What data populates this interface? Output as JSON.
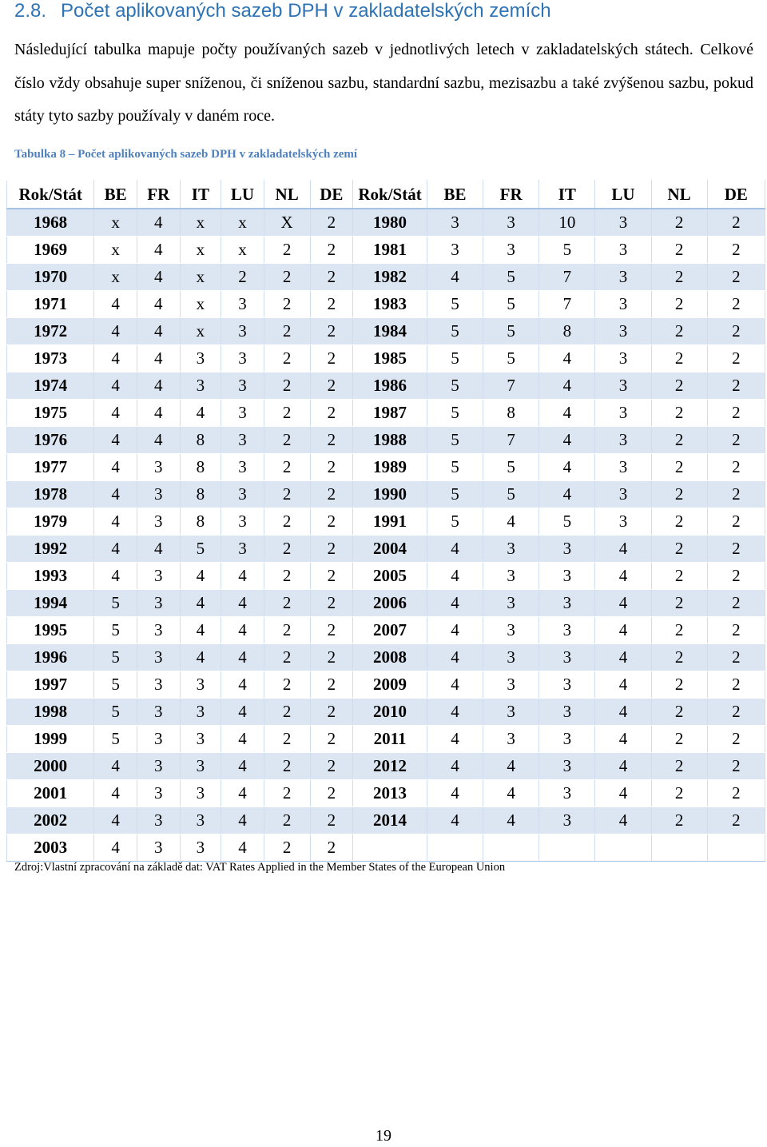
{
  "heading": {
    "number": "2.8.",
    "title": "Počet aplikovaných sazeb DPH v zakladatelských zemích"
  },
  "paragraph": "Následující tabulka mapuje počty používaných sazeb v jednotlivých letech v zakladatelských státech. Celkové číslo vždy obsahuje super sníženou, či sníženou sazbu, standardní sazbu, mezisazbu a také zvýšenou sazbu, pokud státy tyto sazby používaly v daném roce.",
  "caption": "Tabulka 8 – Počet aplikovaných sazeb DPH v zakladatelských zemí",
  "table": {
    "headers": [
      "Rok/Stát",
      "BE",
      "FR",
      "IT",
      "LU",
      "NL",
      "DE",
      "Rok/Stát",
      "BE",
      "FR",
      "IT",
      "LU",
      "NL",
      "DE"
    ],
    "rows": [
      [
        "1968",
        "x",
        "4",
        "x",
        "x",
        "X",
        "2",
        "1980",
        "3",
        "3",
        "10",
        "3",
        "2",
        "2"
      ],
      [
        "1969",
        "x",
        "4",
        "x",
        "x",
        "2",
        "2",
        "1981",
        "3",
        "3",
        "5",
        "3",
        "2",
        "2"
      ],
      [
        "1970",
        "x",
        "4",
        "x",
        "2",
        "2",
        "2",
        "1982",
        "4",
        "5",
        "7",
        "3",
        "2",
        "2"
      ],
      [
        "1971",
        "4",
        "4",
        "x",
        "3",
        "2",
        "2",
        "1983",
        "5",
        "5",
        "7",
        "3",
        "2",
        "2"
      ],
      [
        "1972",
        "4",
        "4",
        "x",
        "3",
        "2",
        "2",
        "1984",
        "5",
        "5",
        "8",
        "3",
        "2",
        "2"
      ],
      [
        "1973",
        "4",
        "4",
        "3",
        "3",
        "2",
        "2",
        "1985",
        "5",
        "5",
        "4",
        "3",
        "2",
        "2"
      ],
      [
        "1974",
        "4",
        "4",
        "3",
        "3",
        "2",
        "2",
        "1986",
        "5",
        "7",
        "4",
        "3",
        "2",
        "2"
      ],
      [
        "1975",
        "4",
        "4",
        "4",
        "3",
        "2",
        "2",
        "1987",
        "5",
        "8",
        "4",
        "3",
        "2",
        "2"
      ],
      [
        "1976",
        "4",
        "4",
        "8",
        "3",
        "2",
        "2",
        "1988",
        "5",
        "7",
        "4",
        "3",
        "2",
        "2"
      ],
      [
        "1977",
        "4",
        "3",
        "8",
        "3",
        "2",
        "2",
        "1989",
        "5",
        "5",
        "4",
        "3",
        "2",
        "2"
      ],
      [
        "1978",
        "4",
        "3",
        "8",
        "3",
        "2",
        "2",
        "1990",
        "5",
        "5",
        "4",
        "3",
        "2",
        "2"
      ],
      [
        "1979",
        "4",
        "3",
        "8",
        "3",
        "2",
        "2",
        "1991",
        "5",
        "4",
        "5",
        "3",
        "2",
        "2"
      ],
      [
        "1992",
        "4",
        "4",
        "5",
        "3",
        "2",
        "2",
        "2004",
        "4",
        "3",
        "3",
        "4",
        "2",
        "2"
      ],
      [
        "1993",
        "4",
        "3",
        "4",
        "4",
        "2",
        "2",
        "2005",
        "4",
        "3",
        "3",
        "4",
        "2",
        "2"
      ],
      [
        "1994",
        "5",
        "3",
        "4",
        "4",
        "2",
        "2",
        "2006",
        "4",
        "3",
        "3",
        "4",
        "2",
        "2"
      ],
      [
        "1995",
        "5",
        "3",
        "4",
        "4",
        "2",
        "2",
        "2007",
        "4",
        "3",
        "3",
        "4",
        "2",
        "2"
      ],
      [
        "1996",
        "5",
        "3",
        "4",
        "4",
        "2",
        "2",
        "2008",
        "4",
        "3",
        "3",
        "4",
        "2",
        "2"
      ],
      [
        "1997",
        "5",
        "3",
        "3",
        "4",
        "2",
        "2",
        "2009",
        "4",
        "3",
        "3",
        "4",
        "2",
        "2"
      ],
      [
        "1998",
        "5",
        "3",
        "3",
        "4",
        "2",
        "2",
        "2010",
        "4",
        "3",
        "3",
        "4",
        "2",
        "2"
      ],
      [
        "1999",
        "5",
        "3",
        "3",
        "4",
        "2",
        "2",
        "2011",
        "4",
        "3",
        "3",
        "4",
        "2",
        "2"
      ],
      [
        "2000",
        "4",
        "3",
        "3",
        "4",
        "2",
        "2",
        "2012",
        "4",
        "4",
        "3",
        "4",
        "2",
        "2"
      ],
      [
        "2001",
        "4",
        "3",
        "3",
        "4",
        "2",
        "2",
        "2013",
        "4",
        "4",
        "3",
        "4",
        "2",
        "2"
      ],
      [
        "2002",
        "4",
        "3",
        "3",
        "4",
        "2",
        "2",
        "2014",
        "4",
        "4",
        "3",
        "4",
        "2",
        "2"
      ],
      [
        "2003",
        "4",
        "3",
        "3",
        "4",
        "2",
        "2",
        "",
        "",
        "",
        "",
        "",
        "",
        ""
      ]
    ]
  },
  "source": "Zdroj:Vlastní zpracování na základě dat: VAT Rates Applied in the Member States of the European Union",
  "page_number": "19"
}
